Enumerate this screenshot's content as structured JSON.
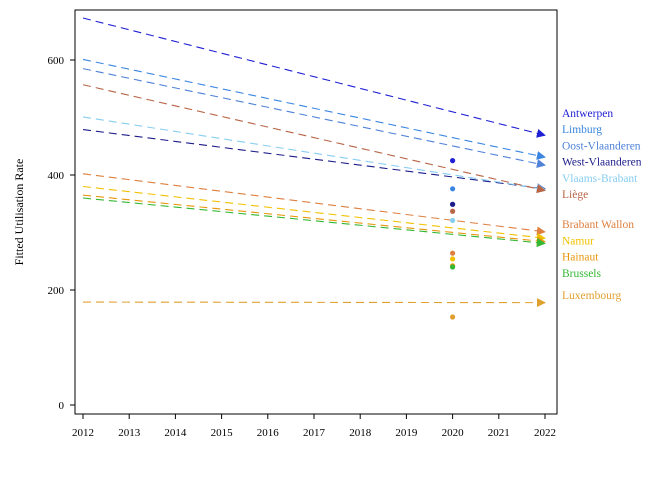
{
  "chart_data": {
    "type": "line",
    "title": "",
    "xlabel": "",
    "ylabel": "Fitted Utilisation Rate",
    "xlim": [
      2012,
      2022
    ],
    "ylim": [
      0,
      700
    ],
    "xticks": [
      2012,
      2013,
      2014,
      2015,
      2016,
      2017,
      2018,
      2019,
      2020,
      2021,
      2022
    ],
    "yticks": [
      0,
      200,
      400,
      600
    ],
    "grid": false,
    "legend": "right, labels at line ends",
    "series": [
      {
        "name": "Antwerpen",
        "color": "#1f1fd6",
        "start": 673,
        "end": 469,
        "observed_2020": 425
      },
      {
        "name": "Limburg",
        "color": "#3a86e0",
        "start": 601,
        "end": 431,
        "observed_2020": 376
      },
      {
        "name": "Oost-Vlaanderen",
        "color": "#4f82d8",
        "start": 585,
        "end": 417,
        "observed_2020": 349
      },
      {
        "name": "West-Vlaanderen",
        "color": "#1c1c8a",
        "start": 479,
        "end": 376,
        "observed_2020": 349
      },
      {
        "name": "Vlaams-Brabant",
        "color": "#87cdf0",
        "start": 501,
        "end": 375,
        "observed_2020": 321
      },
      {
        "name": "Liège",
        "color": "#b86446",
        "start": 557,
        "end": 373,
        "observed_2020": 337
      },
      {
        "name": "Brabant Wallon",
        "color": "#de8040",
        "start": 402,
        "end": 301,
        "observed_2020": 264
      },
      {
        "name": "Namur",
        "color": "#f2c100",
        "start": 380,
        "end": 290,
        "observed_2020": 254
      },
      {
        "name": "Hainaut",
        "color": "#e8960c",
        "start": 365,
        "end": 284,
        "observed_2020": 242
      },
      {
        "name": "Brussels",
        "color": "#33b833",
        "start": 360,
        "end": 281,
        "observed_2020": 240
      },
      {
        "name": "Luxembourg",
        "color": "#e0a030",
        "start": 179,
        "end": 178,
        "observed_2020": 153
      }
    ]
  }
}
